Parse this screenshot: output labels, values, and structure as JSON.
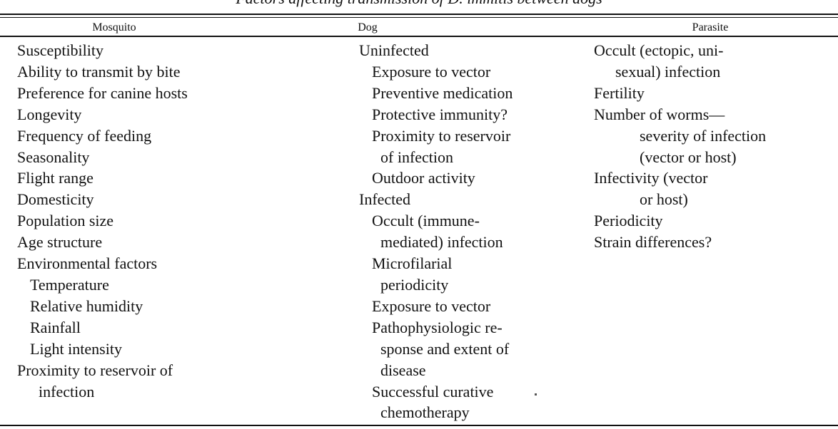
{
  "table": {
    "title": "Factors affecting transmission of D. immitis between dogs",
    "headers": [
      "Mosquito",
      "Dog",
      "Parasite"
    ],
    "columns": [
      [
        {
          "text": "Susceptibility",
          "indent": 0
        },
        {
          "text": "Ability to transmit by bite",
          "indent": 0
        },
        {
          "text": "Preference for canine hosts",
          "indent": 0
        },
        {
          "text": "Longevity",
          "indent": 0
        },
        {
          "text": "Frequency of feeding",
          "indent": 0
        },
        {
          "text": "Seasonality",
          "indent": 0
        },
        {
          "text": "Flight range",
          "indent": 0
        },
        {
          "text": "Domesticity",
          "indent": 0
        },
        {
          "text": "Population size",
          "indent": 0
        },
        {
          "text": "Age structure",
          "indent": 0
        },
        {
          "text": "Environmental factors",
          "indent": 0
        },
        {
          "text": "Temperature",
          "indent": 1
        },
        {
          "text": "Relative humidity",
          "indent": 1
        },
        {
          "text": "Rainfall",
          "indent": 1
        },
        {
          "text": "Light intensity",
          "indent": 1
        },
        {
          "text": "Proximity to reservoir of",
          "indent": 0
        },
        {
          "text": "infection",
          "indent": 2
        }
      ],
      [
        {
          "text": "Uninfected",
          "indent": 0
        },
        {
          "text": "Exposure to vector",
          "indent": 1
        },
        {
          "text": "Preventive medication",
          "indent": 1
        },
        {
          "text": "Protective immunity?",
          "indent": 1
        },
        {
          "text": "Proximity to reservoir",
          "indent": 1
        },
        {
          "text": "of infection",
          "indent": 2
        },
        {
          "text": "Outdoor activity",
          "indent": 1
        },
        {
          "text": "Infected",
          "indent": 0
        },
        {
          "text": "Occult (immune-",
          "indent": 1
        },
        {
          "text": "mediated) infection",
          "indent": 2
        },
        {
          "text": "Microfilarial",
          "indent": 1
        },
        {
          "text": "periodicity",
          "indent": 2
        },
        {
          "text": "Exposure to vector",
          "indent": 1
        },
        {
          "text": "Pathophysiologic re-",
          "indent": 1
        },
        {
          "text": "sponse and extent of",
          "indent": 2
        },
        {
          "text": "disease",
          "indent": 2
        },
        {
          "text": "Successful curative",
          "indent": 1
        },
        {
          "text": "chemotherapy",
          "indent": 2
        }
      ],
      [
        {
          "text": "Occult (ectopic, uni-",
          "indent": 0
        },
        {
          "text": "sexual) infection",
          "indent": 2
        },
        {
          "text": "Fertility",
          "indent": 0
        },
        {
          "text": "Number of worms—",
          "indent": 0
        },
        {
          "text": "severity of infection",
          "indent": 3
        },
        {
          "text": "(vector or host)",
          "indent": 3
        },
        {
          "text": "Infectivity (vector",
          "indent": 0
        },
        {
          "text": "or host)",
          "indent": 3
        },
        {
          "text": "Periodicity",
          "indent": 0
        },
        {
          "text": "Strain differences?",
          "indent": 0
        }
      ]
    ]
  }
}
